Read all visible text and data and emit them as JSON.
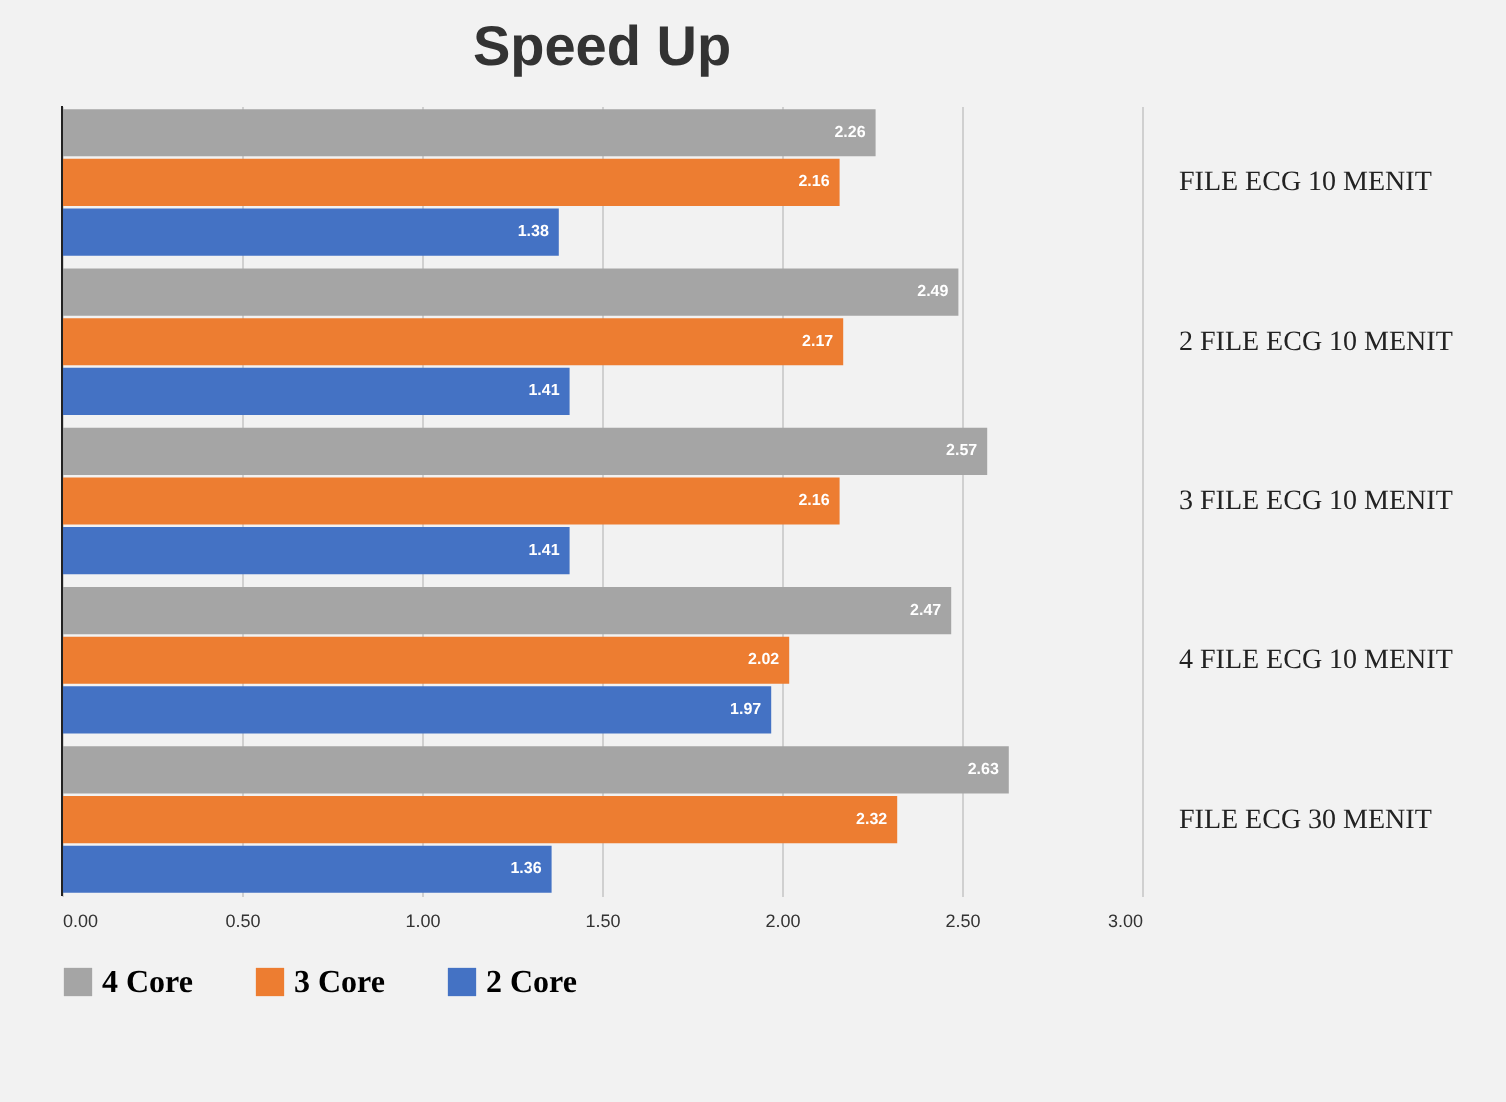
{
  "chart_data": {
    "type": "bar",
    "orientation": "horizontal",
    "title": "Speed Up",
    "categories": [
      "FILE ECG 10 MENIT",
      "2 FILE ECG 10 MENIT",
      "3 FILE ECG 10 MENIT",
      "4 FILE ECG 10 MENIT",
      "FILE ECG 30 MENIT"
    ],
    "series": [
      {
        "name": "4 Core",
        "color": "#a5a5a5",
        "values": [
          2.26,
          2.49,
          2.57,
          2.47,
          2.63
        ]
      },
      {
        "name": "3 Core",
        "color": "#ed7d31",
        "values": [
          2.16,
          2.17,
          2.16,
          2.02,
          2.32
        ]
      },
      {
        "name": "2 Core",
        "color": "#4472c4",
        "values": [
          1.38,
          1.41,
          1.41,
          1.97,
          1.36
        ]
      }
    ],
    "xlim": [
      0,
      3
    ],
    "xticks": [
      {
        "value": 0,
        "label": "0.00"
      },
      {
        "value": 0.5,
        "label": "0.50"
      },
      {
        "value": 1,
        "label": "1.00"
      },
      {
        "value": 1.5,
        "label": "1.50"
      },
      {
        "value": 2,
        "label": "2.00"
      },
      {
        "value": 2.5,
        "label": "2.50"
      },
      {
        "value": 3,
        "label": "3.00"
      }
    ],
    "grid": "x",
    "legend": "bottom",
    "data_labels": true
  }
}
